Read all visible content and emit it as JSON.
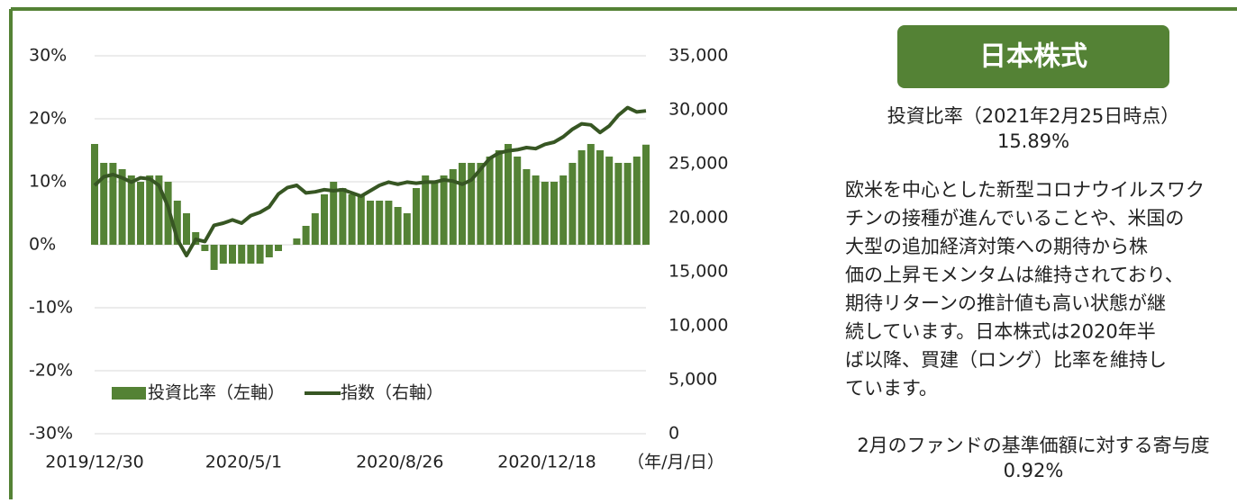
{
  "chart_data": {
    "type": "bar",
    "categories": [
      "2019/12/30",
      null,
      null,
      null,
      null,
      null,
      null,
      null,
      null,
      null,
      null,
      null,
      null,
      null,
      null,
      null,
      null,
      "2020/5/1",
      null,
      null,
      null,
      null,
      null,
      null,
      null,
      null,
      null,
      null,
      null,
      null,
      null,
      null,
      null,
      null,
      "2020/8/26",
      null,
      null,
      null,
      null,
      null,
      null,
      null,
      null,
      null,
      null,
      null,
      null,
      null,
      null,
      null,
      "2020/12/18",
      null,
      null,
      null,
      null,
      null,
      null,
      null,
      null,
      null,
      null
    ],
    "x_unit": "（年/月/日）",
    "series": [
      {
        "name": "投資比率（左軸）",
        "color": "#548235",
        "values": [
          16,
          13,
          13,
          12,
          11,
          10,
          11,
          11,
          10,
          7,
          5,
          2,
          -1,
          -4,
          -3,
          -3,
          -3,
          -3,
          -3,
          -2,
          -1,
          0,
          1,
          3,
          5,
          8,
          10,
          9,
          8,
          8,
          7,
          7,
          7,
          6,
          5,
          9,
          11,
          10,
          11,
          12,
          13,
          13,
          13,
          14,
          15,
          16,
          14,
          12,
          11,
          10,
          10,
          11,
          13,
          15,
          16,
          15,
          14,
          13,
          13,
          14,
          15.89
        ]
      },
      {
        "name": "指数（右軸）",
        "color": "#375623",
        "type": "line",
        "axis": "y2",
        "values": [
          23000,
          23800,
          24000,
          23700,
          23300,
          23700,
          23600,
          23000,
          21000,
          18000,
          16500,
          18000,
          17800,
          19300,
          19500,
          19800,
          19500,
          20200,
          20500,
          21000,
          22200,
          22800,
          23000,
          22300,
          22400,
          22600,
          22500,
          22600,
          22300,
          22000,
          22500,
          23000,
          23300,
          23100,
          23300,
          23200,
          23300,
          23300,
          23500,
          23400,
          23100,
          23500,
          24500,
          25500,
          26000,
          26200,
          26300,
          26500,
          26400,
          26800,
          27000,
          27500,
          28200,
          28700,
          28600,
          27900,
          28500,
          29500,
          30200,
          29800,
          29900
        ]
      }
    ],
    "ylim": [
      -30,
      30
    ],
    "yticks": [
      {
        "value": -30,
        "label": "-30%"
      },
      {
        "value": -20,
        "label": "-20%"
      },
      {
        "value": -10,
        "label": "-10%"
      },
      {
        "value": 0,
        "label": "0%"
      },
      {
        "value": 10,
        "label": "10%"
      },
      {
        "value": 20,
        "label": "20%"
      },
      {
        "value": 30,
        "label": "30%"
      }
    ],
    "y2lim": [
      0,
      35000
    ],
    "y2ticks": [
      0,
      {
        "value": 5000,
        "label": "5,000"
      },
      {
        "value": 10000,
        "label": "10,000"
      },
      {
        "value": 15000,
        "label": "15,000"
      },
      {
        "value": 20000,
        "label": "20,000"
      },
      {
        "value": 25000,
        "label": "25,000"
      },
      {
        "value": 30000,
        "label": "30,000"
      },
      {
        "value": 35000,
        "label": "35,000"
      }
    ],
    "grid": true,
    "legend": "lower left"
  },
  "panel": {
    "heading": "日本株式",
    "ratio_title": "投資比率（2021年2月25日時点）",
    "ratio": "15.89%",
    "comment": [
      "欧米を中心とした新型コロナウイルスワク",
      "チンの接種が進んでいることや、米国の",
      "大型の追加経済対策への期待から株",
      "価の上昇モメンタムは維持されており、",
      "期待リターンの推計値も高い状態が継",
      "続しています。日本株式は2020年半",
      "ば以降、買建（ロング）比率を維持し",
      "ています。"
    ],
    "contribution_title": "2月のファンドの基準価額に対する寄与度",
    "contribution": "0.92%"
  }
}
